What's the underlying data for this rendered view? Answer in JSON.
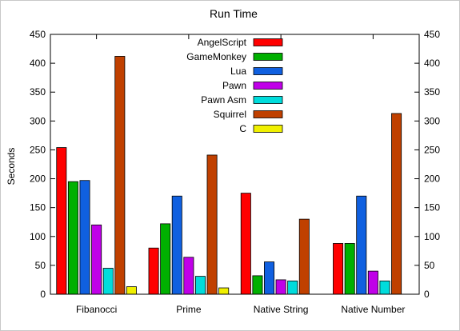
{
  "chart_data": {
    "type": "bar",
    "title": "Run Time",
    "xlabel": "",
    "ylabel": "Seconds",
    "ylim": [
      0,
      450
    ],
    "yticks": [
      0,
      50,
      100,
      150,
      200,
      250,
      300,
      350,
      400,
      450
    ],
    "y2ticks": [
      0,
      50,
      100,
      150,
      200,
      250,
      300,
      350,
      400,
      450
    ],
    "categories": [
      "Fibanocci",
      "Prime",
      "Native String",
      "Native Number"
    ],
    "series": [
      {
        "name": "AngelScript",
        "color": "#ff0000",
        "values": [
          254,
          80,
          175,
          88
        ]
      },
      {
        "name": "GameMonkey",
        "color": "#00b000",
        "values": [
          195,
          122,
          32,
          88
        ]
      },
      {
        "name": "Lua",
        "color": "#1060e0",
        "values": [
          197,
          170,
          56,
          170
        ]
      },
      {
        "name": "Pawn",
        "color": "#c000e8",
        "values": [
          120,
          64,
          25,
          40
        ]
      },
      {
        "name": "Pawn Asm",
        "color": "#00dcdc",
        "values": [
          45,
          31,
          23,
          23
        ]
      },
      {
        "name": "Squirrel",
        "color": "#c04000",
        "values": [
          412,
          241,
          130,
          313
        ]
      },
      {
        "name": "C",
        "color": "#f0f000",
        "values": [
          13,
          11,
          0,
          0
        ]
      }
    ],
    "grid": false,
    "legend_position": "top-center",
    "right_axis": true
  }
}
